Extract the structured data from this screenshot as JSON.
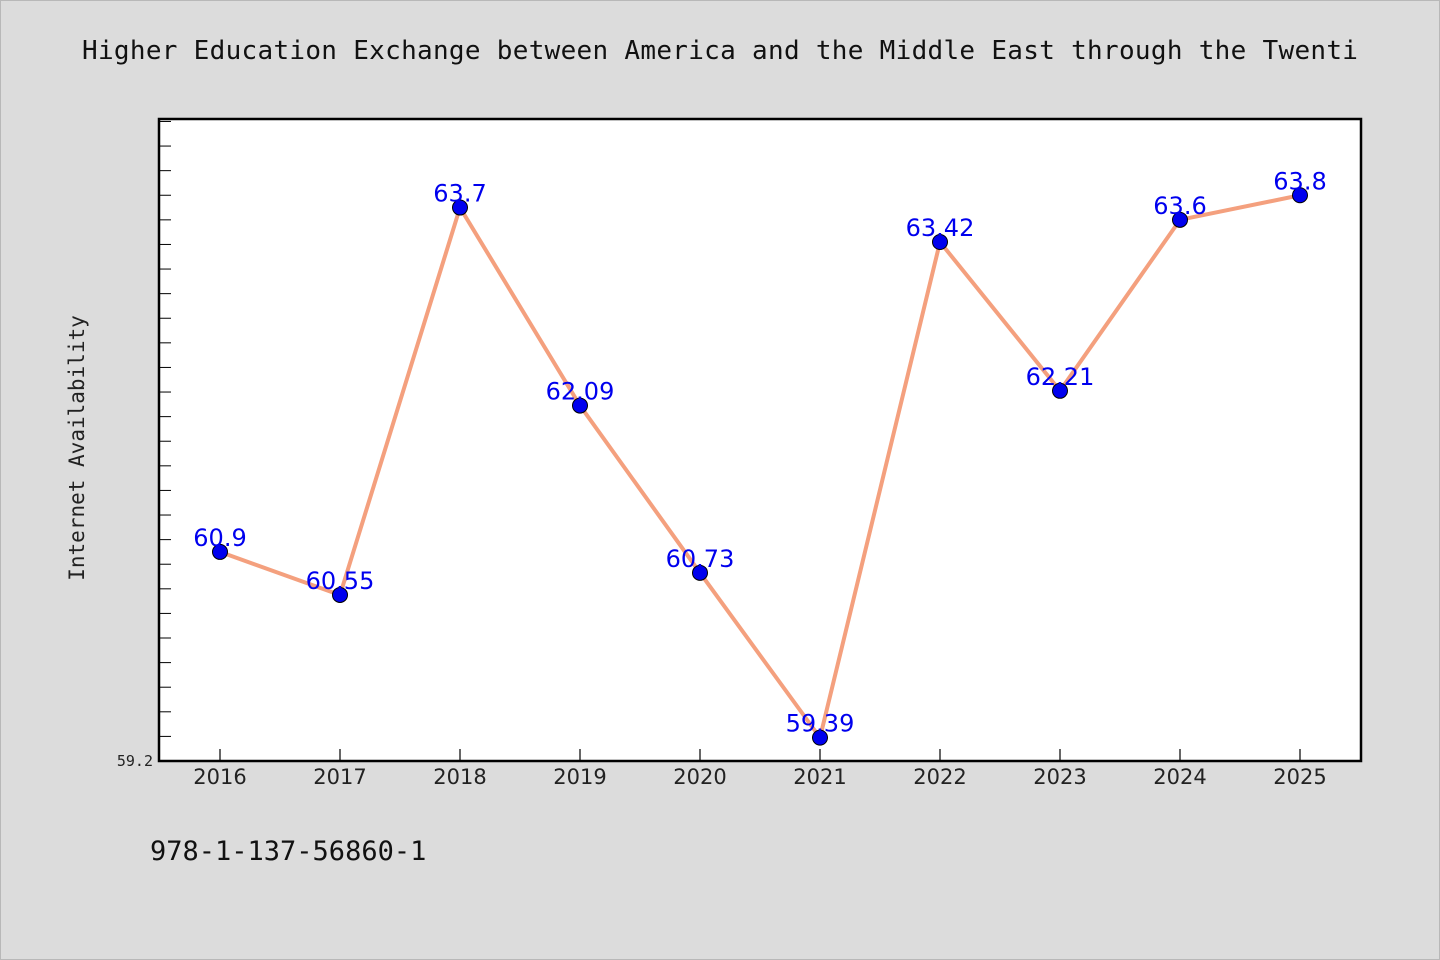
{
  "page": {
    "title": "Higher Education Exchange between America and the Middle East through the Twenti",
    "footer_code": "978-1-137-56860-1"
  },
  "chart_data": {
    "type": "line",
    "title": "Higher Education Exchange between America and the Middle East through the Twenti",
    "xlabel": "",
    "ylabel": "Internet Availability",
    "categories": [
      "2016",
      "2017",
      "2018",
      "2019",
      "2020",
      "2021",
      "2022",
      "2023",
      "2024",
      "2025"
    ],
    "series": [
      {
        "values": [
          60.9,
          60.55,
          63.7,
          62.09,
          60.73,
          59.39,
          63.42,
          62.21,
          63.6,
          63.8
        ],
        "labels": [
          "60.9",
          "60.55",
          "63.7",
          "62.09",
          "60.73",
          "59.39",
          "63.42",
          "62.21",
          "63.6",
          "63.8"
        ],
        "line_color": "#f4a07e",
        "marker_color": "#0000ee"
      }
    ],
    "ylim": [
      59.2,
      64.42
    ],
    "y_tick_labels": [
      "59.2"
    ],
    "minor_tick_step": 0.2,
    "grid": false,
    "legend": "none"
  }
}
